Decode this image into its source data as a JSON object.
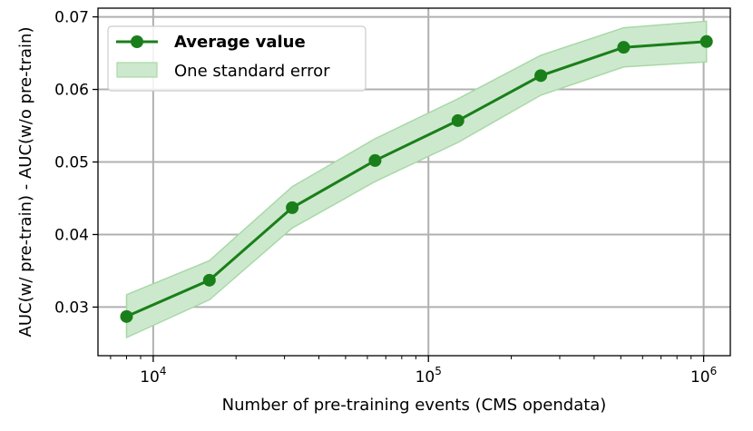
{
  "chart_data": {
    "type": "line",
    "xlabel": "Number of pre-training events (CMS opendata)",
    "ylabel": "AUC(w/ pre-train) - AUC(w/o pre-train)",
    "x_scale": "log",
    "x": [
      8000,
      16000,
      32000,
      64000,
      128000,
      256000,
      512000,
      1024000
    ],
    "xlim": [
      6300,
      1250000
    ],
    "ylim": [
      0.0233,
      0.0712
    ],
    "x_ticks": [
      {
        "value": 10000,
        "base": "10",
        "exp": "4"
      },
      {
        "value": 100000,
        "base": "10",
        "exp": "5"
      },
      {
        "value": 1000000,
        "base": "10",
        "exp": "6"
      }
    ],
    "y_ticks": [
      {
        "value": 0.03,
        "label": "0.03"
      },
      {
        "value": 0.04,
        "label": "0.04"
      },
      {
        "value": 0.05,
        "label": "0.05"
      },
      {
        "value": 0.06,
        "label": "0.06"
      },
      {
        "value": 0.07,
        "label": "0.07"
      }
    ],
    "grid": true,
    "legend_position": "top-left",
    "series": [
      {
        "name": "Average value",
        "values": [
          0.0287,
          0.0337,
          0.0437,
          0.0502,
          0.0557,
          0.0619,
          0.0658,
          0.0666
        ],
        "color": "#1a7f1a"
      }
    ],
    "band": {
      "name": "One standard error",
      "lower": [
        0.0258,
        0.031,
        0.0409,
        0.0473,
        0.0527,
        0.0592,
        0.0631,
        0.0638
      ],
      "upper": [
        0.0317,
        0.0364,
        0.0466,
        0.0532,
        0.0587,
        0.0647,
        0.0685,
        0.0694
      ],
      "fill_color": "#cde9cd",
      "edge_color": "#a8d8a8"
    }
  }
}
